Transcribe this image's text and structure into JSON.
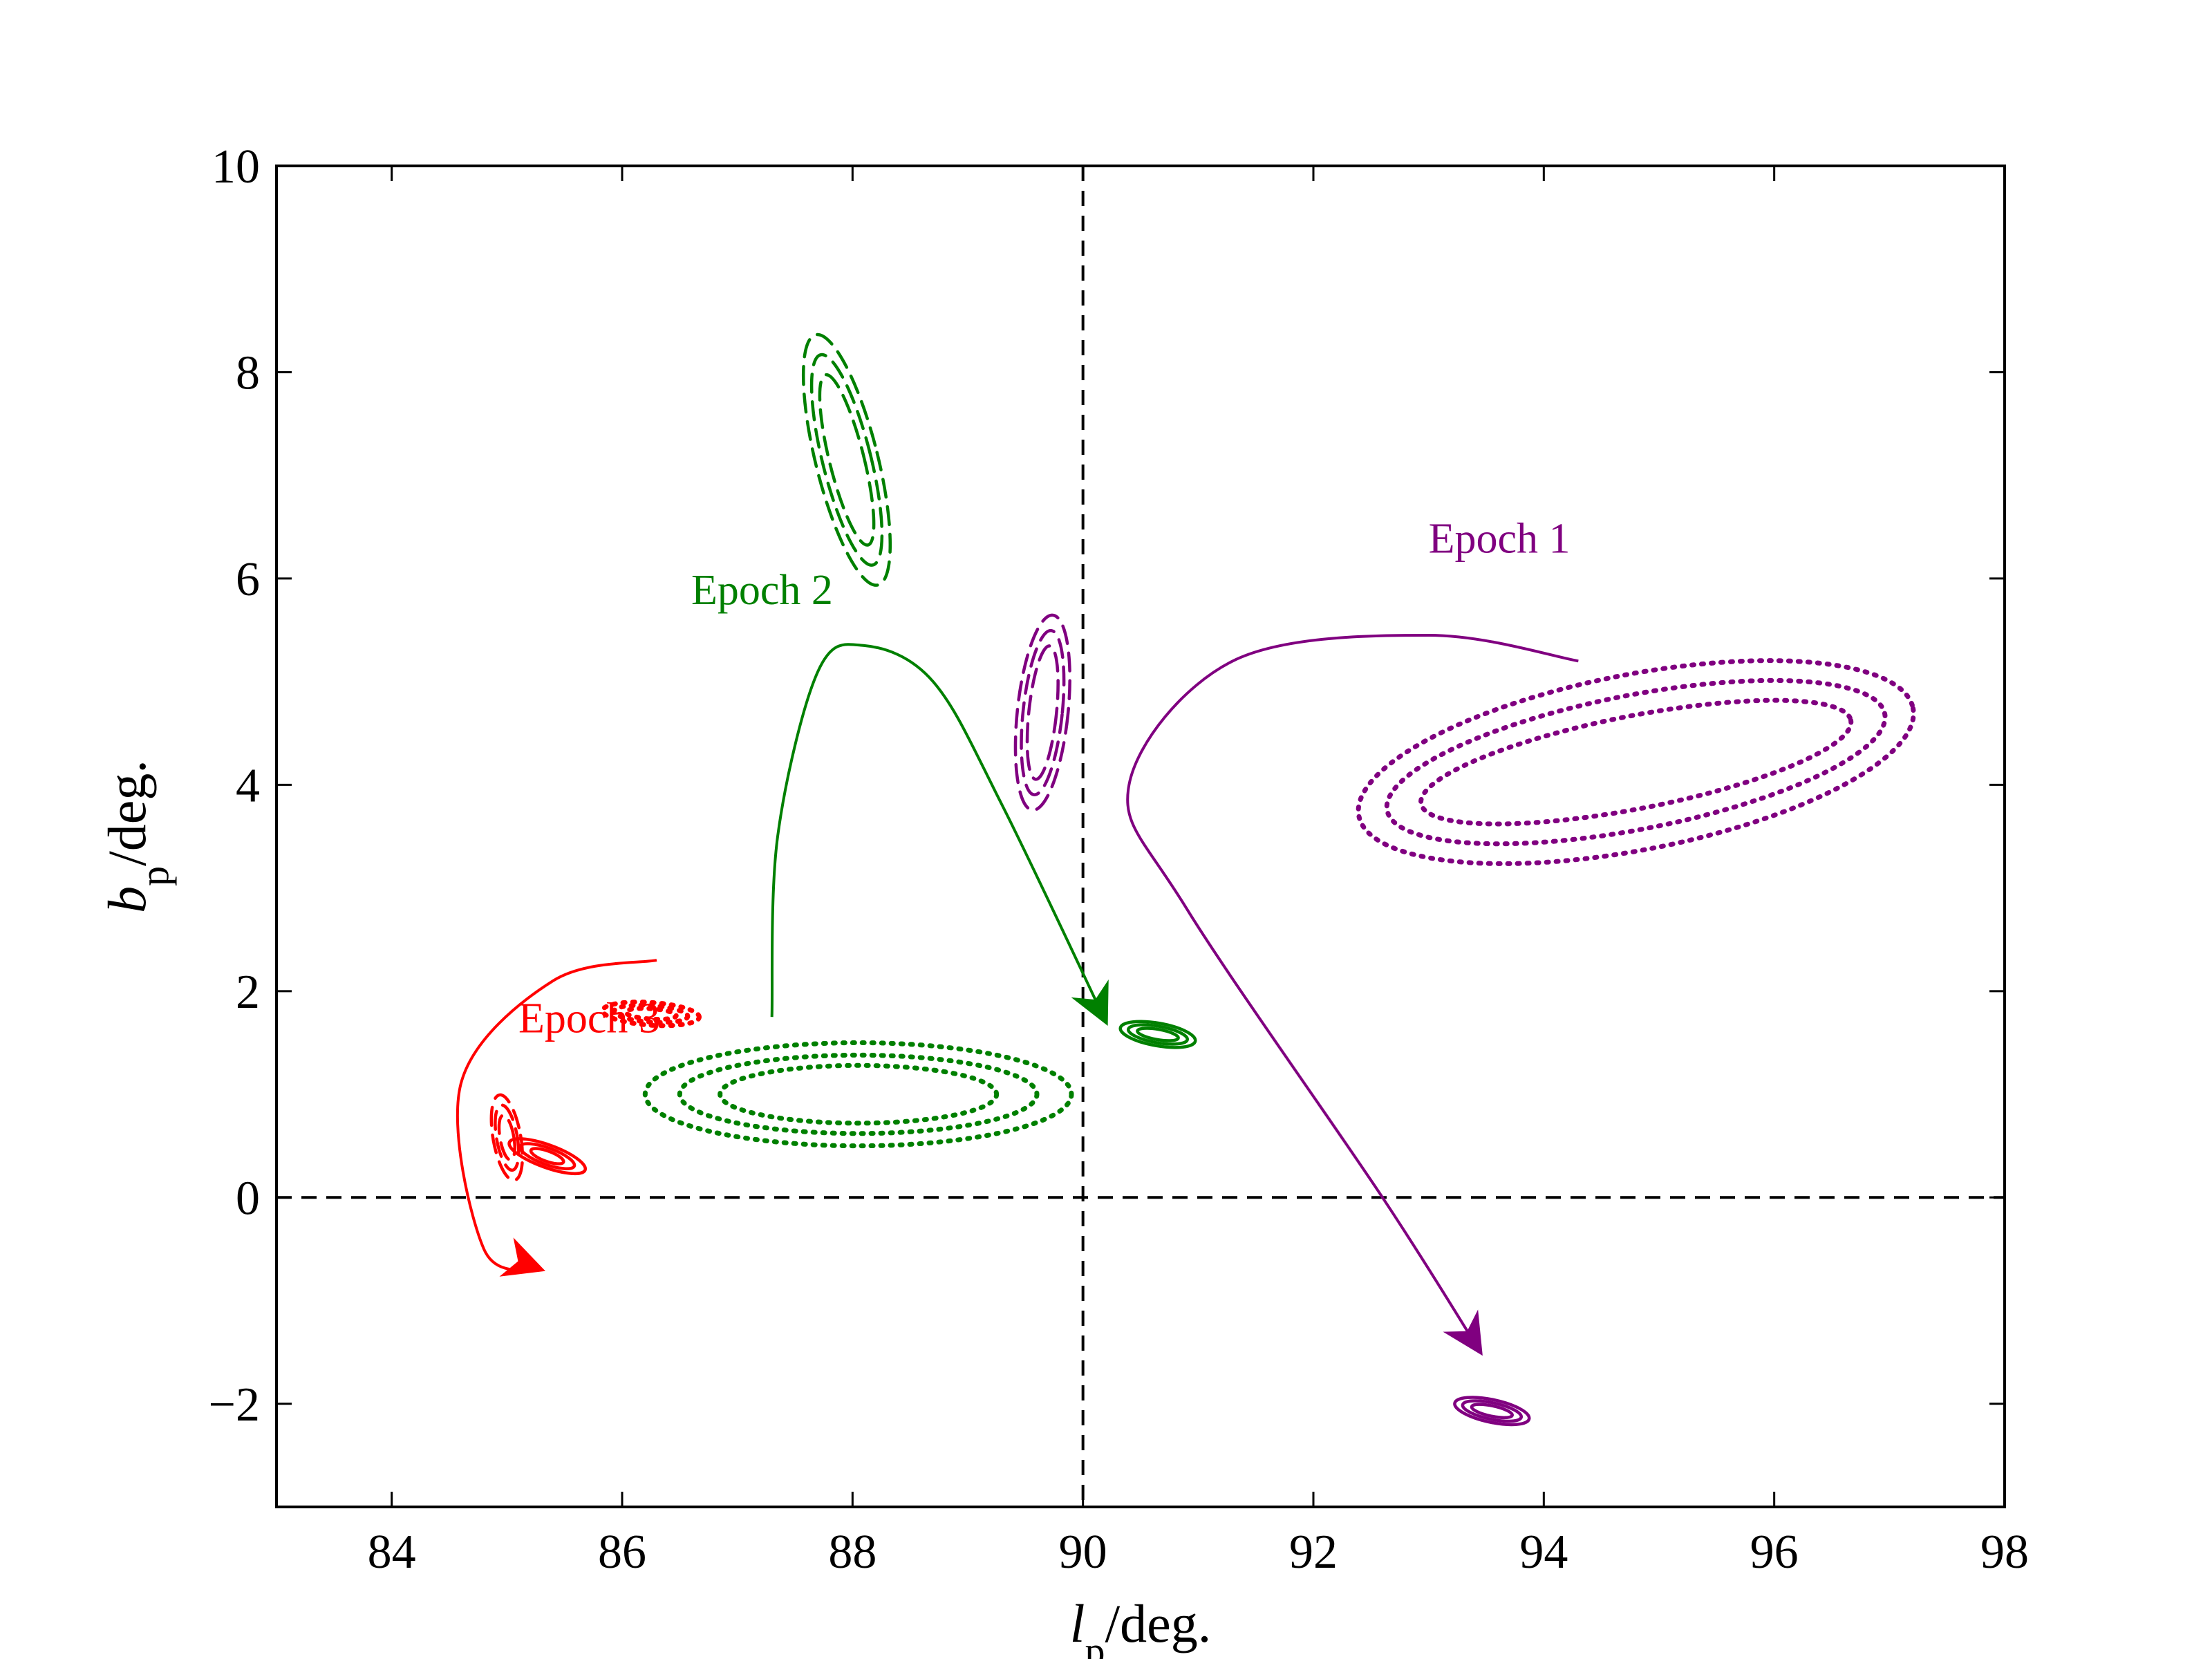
{
  "chart_data": {
    "type": "line",
    "title": "",
    "xlabel": {
      "main": "l",
      "sub": "p",
      "rest": "/deg."
    },
    "ylabel": {
      "main": "b",
      "sub": "p",
      "rest": "/deg."
    },
    "xlim": [
      83,
      98
    ],
    "ylim": [
      -3,
      10
    ],
    "xticks": [
      84,
      86,
      88,
      90,
      92,
      94,
      96,
      98
    ],
    "yticks": [
      -2,
      0,
      2,
      4,
      6,
      8,
      10
    ],
    "xtick_labels": [
      "84",
      "86",
      "88",
      "90",
      "92",
      "94",
      "96",
      "98"
    ],
    "ytick_labels": [
      "−2",
      "0",
      "2",
      "4",
      "6",
      "8",
      "10"
    ],
    "reference_lines": [
      {
        "orientation": "vertical",
        "value": 90,
        "style": "dashed"
      },
      {
        "orientation": "horizontal",
        "value": 0,
        "style": "dashed"
      }
    ],
    "colors": {
      "epoch1": "#800080",
      "epoch2": "#008000",
      "epoch3": "#ff0000",
      "axis": "#000000"
    },
    "annotations": [
      {
        "text": "Epoch 1",
        "x": 93.0,
        "y": 6.25,
        "series": "epoch1"
      },
      {
        "text": "Epoch 2",
        "x": 86.6,
        "y": 5.75,
        "series": "epoch2"
      },
      {
        "text": "Epoch 3",
        "x": 85.1,
        "y": 1.6,
        "series": "epoch3"
      }
    ],
    "trajectories": [
      {
        "series": "epoch1",
        "points": [
          [
            94.3,
            5.2
          ],
          [
            93.0,
            5.45
          ],
          [
            91.3,
            5.2
          ],
          [
            90.4,
            4.0
          ],
          [
            90.9,
            2.8
          ],
          [
            92.6,
            0.0
          ],
          [
            93.45,
            -1.5
          ]
        ]
      },
      {
        "series": "epoch2",
        "points": [
          [
            87.3,
            1.75
          ],
          [
            87.35,
            3.5
          ],
          [
            87.7,
            5.1
          ],
          [
            88.1,
            5.35
          ],
          [
            88.7,
            5.0
          ],
          [
            89.3,
            3.8
          ],
          [
            90.2,
            1.7
          ]
        ]
      },
      {
        "series": "epoch3",
        "points": [
          [
            86.3,
            2.3
          ],
          [
            85.4,
            2.1
          ],
          [
            84.6,
            1.1
          ],
          [
            84.8,
            -0.5
          ],
          [
            85.3,
            -0.7
          ]
        ]
      }
    ],
    "contour_groups": [
      {
        "series": "epoch1",
        "style": "dotted",
        "center": [
          94.8,
          4.22
        ],
        "rx": [
          1.9,
          2.2,
          2.45
        ],
        "ry": [
          0.45,
          0.65,
          0.85
        ],
        "tilt_deg": 11
      },
      {
        "series": "epoch1",
        "style": "dashed",
        "center": [
          89.65,
          4.7
        ],
        "rx": [
          0.12,
          0.17,
          0.22
        ],
        "ry": [
          0.65,
          0.8,
          0.95
        ],
        "tilt_deg": -6
      },
      {
        "series": "epoch1",
        "style": "solid",
        "center": [
          93.55,
          -2.07
        ],
        "rx": [
          0.18,
          0.26,
          0.33
        ],
        "ry": [
          0.05,
          0.08,
          0.11
        ],
        "tilt_deg": -12
      },
      {
        "series": "epoch2",
        "style": "dotted",
        "center": [
          88.05,
          1.0
        ],
        "rx": [
          1.2,
          1.55,
          1.85
        ],
        "ry": [
          0.28,
          0.38,
          0.5
        ],
        "tilt_deg": 0
      },
      {
        "series": "epoch2",
        "style": "dashed",
        "center": [
          87.95,
          7.15
        ],
        "rx": [
          0.15,
          0.21,
          0.27
        ],
        "ry": [
          0.85,
          1.05,
          1.25
        ],
        "tilt_deg": 14
      },
      {
        "series": "epoch2",
        "style": "solid",
        "center": [
          90.65,
          1.58
        ],
        "rx": [
          0.18,
          0.26,
          0.33
        ],
        "ry": [
          0.05,
          0.08,
          0.11
        ],
        "tilt_deg": -10
      },
      {
        "series": "epoch3",
        "style": "dotted",
        "center": [
          86.25,
          1.78
        ],
        "rx": [
          0.22,
          0.32,
          0.42
        ],
        "ry": [
          0.05,
          0.08,
          0.11
        ],
        "tilt_deg": -4
      },
      {
        "series": "epoch3",
        "style": "dashed",
        "center": [
          85.0,
          0.58
        ],
        "rx": [
          0.06,
          0.09,
          0.12
        ],
        "ry": [
          0.22,
          0.32,
          0.42
        ],
        "tilt_deg": 10
      },
      {
        "series": "epoch3",
        "style": "solid",
        "center": [
          85.35,
          0.4
        ],
        "rx": [
          0.15,
          0.25,
          0.35
        ],
        "ry": [
          0.05,
          0.08,
          0.11
        ],
        "tilt_deg": -20
      }
    ]
  }
}
